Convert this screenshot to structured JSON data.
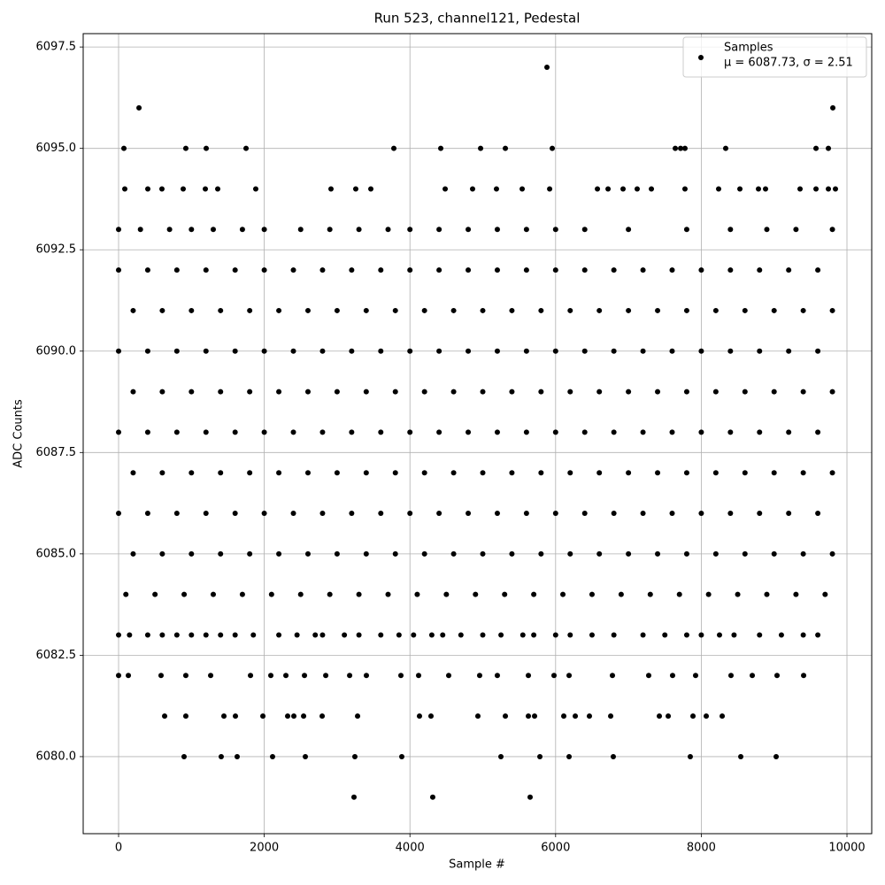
{
  "chart_data": {
    "type": "scatter",
    "title": "Run 523, channel121, Pedestal",
    "x_label": "Sample #",
    "y_label": "ADC Counts",
    "xlim": [
      -486,
      10340
    ],
    "ylim": [
      6078.1,
      6097.83
    ],
    "xticks": [
      0,
      2000,
      4000,
      6000,
      8000,
      10000
    ],
    "yticks": [
      {
        "value": 6080,
        "label": "6080.0"
      },
      6082.5,
      {
        "value": 6085,
        "label": "6085.0"
      },
      6087.5,
      {
        "value": 6090,
        "label": "6090.0"
      },
      6092.5,
      {
        "value": 6095,
        "label": "6095.0"
      },
      6097.5
    ],
    "grid": true,
    "legend": "upper right",
    "series": [
      {
        "name": "Samples",
        "label_note": "μ = 6087.73, σ = 2.51",
        "color": "#000000",
        "x": [
          5881,
          280,
          9806,
          73,
          923,
          1203,
          1750,
          3779,
          4423,
          4970,
          5310,
          5954,
          7643,
          7716,
          7776,
          8335,
          9575,
          9745,
          85,
          401,
          595,
          887,
          1191,
          1361,
          1883,
          2916,
          3256,
          3463,
          4484,
          4860,
          5188,
          5541,
          5918,
          6574,
          6720,
          6926,
          7120,
          7315,
          7776,
          8238,
          8530,
          8785,
          8882,
          9356,
          9575,
          9745,
          9842,
          0,
          300,
          700,
          1000,
          1300,
          1700,
          2000,
          2500,
          2900,
          3300,
          3700,
          4000,
          4400,
          4800,
          5200,
          5600,
          6000,
          6400,
          7000,
          7800,
          8400,
          8900,
          9300,
          9800,
          0,
          400,
          800,
          1200,
          1600,
          2000,
          2400,
          2800,
          3200,
          3600,
          4000,
          4400,
          4800,
          5200,
          5600,
          6000,
          6400,
          6800,
          7200,
          7600,
          8000,
          8400,
          8800,
          9200,
          9600,
          200,
          600,
          1000,
          1400,
          1800,
          2200,
          2600,
          3000,
          3400,
          3800,
          4200,
          4600,
          5000,
          5400,
          5800,
          6200,
          6600,
          7000,
          7400,
          7800,
          8200,
          8600,
          9000,
          9400,
          9800,
          0,
          400,
          800,
          1200,
          1600,
          2000,
          2400,
          2800,
          3200,
          3600,
          4000,
          4400,
          4800,
          5200,
          5600,
          6000,
          6400,
          6800,
          7200,
          7600,
          8000,
          8400,
          8800,
          9200,
          9600,
          200,
          600,
          1000,
          1400,
          1800,
          2200,
          2600,
          3000,
          3400,
          3800,
          4200,
          4600,
          5000,
          5400,
          5800,
          6200,
          6600,
          7000,
          7400,
          7800,
          8200,
          8600,
          9000,
          9400,
          9800,
          0,
          400,
          800,
          1200,
          1600,
          2000,
          2400,
          2800,
          3200,
          3600,
          4000,
          4400,
          4800,
          5200,
          5600,
          6000,
          6400,
          6800,
          7200,
          7600,
          8000,
          8400,
          8800,
          9200,
          9600,
          200,
          600,
          1000,
          1400,
          1800,
          2200,
          2600,
          3000,
          3400,
          3800,
          4200,
          4600,
          5000,
          5400,
          5800,
          6200,
          6600,
          7000,
          7400,
          7800,
          8200,
          8600,
          9000,
          9400,
          9800,
          0,
          400,
          800,
          1200,
          1600,
          2000,
          2400,
          2800,
          3200,
          3600,
          4000,
          4400,
          4800,
          5200,
          5600,
          6000,
          6400,
          6800,
          7200,
          7600,
          8000,
          8400,
          8800,
          9200,
          9600,
          200,
          600,
          1000,
          1400,
          1800,
          2200,
          2600,
          3000,
          3400,
          3800,
          4200,
          4600,
          5000,
          5400,
          5800,
          6200,
          6600,
          7000,
          7400,
          7800,
          8200,
          8600,
          9000,
          9400,
          9800,
          100,
          500,
          900,
          1300,
          1700,
          2100,
          2500,
          2900,
          3300,
          3700,
          4100,
          4500,
          4900,
          5300,
          5700,
          6100,
          6500,
          6900,
          7300,
          7700,
          8100,
          8500,
          8900,
          9300,
          9700,
          0,
          150,
          400,
          600,
          800,
          1000,
          1200,
          1400,
          1600,
          1850,
          2200,
          2450,
          2700,
          2800,
          3100,
          3300,
          3600,
          3850,
          4050,
          4300,
          4450,
          4700,
          5000,
          5250,
          5550,
          5700,
          6000,
          6200,
          6500,
          6800,
          7200,
          7500,
          7800,
          8000,
          8250,
          8450,
          8800,
          9100,
          9400,
          9600,
          0,
          134,
          583,
          923,
          1264,
          1811,
          2090,
          2297,
          2552,
          2844,
          3172,
          3402,
          3876,
          4119,
          4532,
          4957,
          5200,
          5626,
          5978,
          6185,
          6780,
          7278,
          7606,
          7922,
          8408,
          8700,
          9040,
          9405,
          632,
          923,
          1446,
          1604,
          1981,
          2321,
          2406,
          2540,
          2795,
          3281,
          4131,
          4289,
          4933,
          5310,
          5626,
          5711,
          6112,
          6270,
          6464,
          6756,
          7424,
          7546,
          7886,
          8068,
          8287,
          899,
          1409,
          1628,
          2114,
          2564,
          3244,
          3888,
          5249,
          5784,
          6185,
          6792,
          7849,
          8542,
          9028,
          3232,
          4313,
          5650
        ],
        "values": [
          6097,
          6096,
          6096,
          6095,
          6095,
          6095,
          6095,
          6095,
          6095,
          6095,
          6095,
          6095,
          6095,
          6095,
          6095,
          6095,
          6095,
          6095,
          6094,
          6094,
          6094,
          6094,
          6094,
          6094,
          6094,
          6094,
          6094,
          6094,
          6094,
          6094,
          6094,
          6094,
          6094,
          6094,
          6094,
          6094,
          6094,
          6094,
          6094,
          6094,
          6094,
          6094,
          6094,
          6094,
          6094,
          6094,
          6094,
          6093,
          6093,
          6093,
          6093,
          6093,
          6093,
          6093,
          6093,
          6093,
          6093,
          6093,
          6093,
          6093,
          6093,
          6093,
          6093,
          6093,
          6093,
          6093,
          6093,
          6093,
          6093,
          6093,
          6093,
          6092,
          6092,
          6092,
          6092,
          6092,
          6092,
          6092,
          6092,
          6092,
          6092,
          6092,
          6092,
          6092,
          6092,
          6092,
          6092,
          6092,
          6092,
          6092,
          6092,
          6092,
          6092,
          6092,
          6092,
          6092,
          6091,
          6091,
          6091,
          6091,
          6091,
          6091,
          6091,
          6091,
          6091,
          6091,
          6091,
          6091,
          6091,
          6091,
          6091,
          6091,
          6091,
          6091,
          6091,
          6091,
          6091,
          6091,
          6091,
          6091,
          6091,
          6090,
          6090,
          6090,
          6090,
          6090,
          6090,
          6090,
          6090,
          6090,
          6090,
          6090,
          6090,
          6090,
          6090,
          6090,
          6090,
          6090,
          6090,
          6090,
          6090,
          6090,
          6090,
          6090,
          6090,
          6090,
          6089,
          6089,
          6089,
          6089,
          6089,
          6089,
          6089,
          6089,
          6089,
          6089,
          6089,
          6089,
          6089,
          6089,
          6089,
          6089,
          6089,
          6089,
          6089,
          6089,
          6089,
          6089,
          6089,
          6089,
          6089,
          6088,
          6088,
          6088,
          6088,
          6088,
          6088,
          6088,
          6088,
          6088,
          6088,
          6088,
          6088,
          6088,
          6088,
          6088,
          6088,
          6088,
          6088,
          6088,
          6088,
          6088,
          6088,
          6088,
          6088,
          6088,
          6087,
          6087,
          6087,
          6087,
          6087,
          6087,
          6087,
          6087,
          6087,
          6087,
          6087,
          6087,
          6087,
          6087,
          6087,
          6087,
          6087,
          6087,
          6087,
          6087,
          6087,
          6087,
          6087,
          6087,
          6087,
          6086,
          6086,
          6086,
          6086,
          6086,
          6086,
          6086,
          6086,
          6086,
          6086,
          6086,
          6086,
          6086,
          6086,
          6086,
          6086,
          6086,
          6086,
          6086,
          6086,
          6086,
          6086,
          6086,
          6086,
          6086,
          6085,
          6085,
          6085,
          6085,
          6085,
          6085,
          6085,
          6085,
          6085,
          6085,
          6085,
          6085,
          6085,
          6085,
          6085,
          6085,
          6085,
          6085,
          6085,
          6085,
          6085,
          6085,
          6085,
          6085,
          6085,
          6084,
          6084,
          6084,
          6084,
          6084,
          6084,
          6084,
          6084,
          6084,
          6084,
          6084,
          6084,
          6084,
          6084,
          6084,
          6084,
          6084,
          6084,
          6084,
          6084,
          6084,
          6084,
          6084,
          6084,
          6084,
          6083,
          6083,
          6083,
          6083,
          6083,
          6083,
          6083,
          6083,
          6083,
          6083,
          6083,
          6083,
          6083,
          6083,
          6083,
          6083,
          6083,
          6083,
          6083,
          6083,
          6083,
          6083,
          6083,
          6083,
          6083,
          6083,
          6083,
          6083,
          6083,
          6083,
          6083,
          6083,
          6083,
          6083,
          6083,
          6083,
          6083,
          6083,
          6083,
          6083,
          6082,
          6082,
          6082,
          6082,
          6082,
          6082,
          6082,
          6082,
          6082,
          6082,
          6082,
          6082,
          6082,
          6082,
          6082,
          6082,
          6082,
          6082,
          6082,
          6082,
          6082,
          6082,
          6082,
          6082,
          6082,
          6082,
          6082,
          6082,
          6081,
          6081,
          6081,
          6081,
          6081,
          6081,
          6081,
          6081,
          6081,
          6081,
          6081,
          6081,
          6081,
          6081,
          6081,
          6081,
          6081,
          6081,
          6081,
          6081,
          6081,
          6081,
          6081,
          6081,
          6081,
          6080,
          6080,
          6080,
          6080,
          6080,
          6080,
          6080,
          6080,
          6080,
          6080,
          6080,
          6080,
          6080,
          6080,
          6079,
          6079,
          6079
        ]
      }
    ]
  }
}
